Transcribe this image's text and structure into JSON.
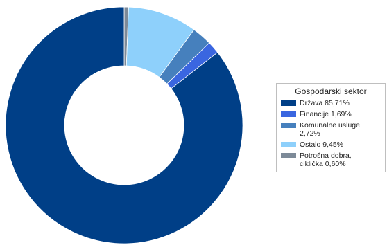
{
  "chart_data": {
    "type": "pie",
    "variant": "donut",
    "title": "",
    "legend": {
      "title": "Gospodarski sektor",
      "placement": "right"
    },
    "slices": [
      {
        "name": "Država",
        "label": "Država 85,71%",
        "value": 85.71,
        "color": "#003f87"
      },
      {
        "name": "Financije",
        "label": "Financije 1,69%",
        "value": 1.69,
        "color": "#3a66e0"
      },
      {
        "name": "Komunalne usluge",
        "label": "Komunalne usluge 2,72%",
        "value": 2.72,
        "color": "#4680bd"
      },
      {
        "name": "Ostalo",
        "label": "Ostalo 9,45%",
        "value": 9.45,
        "color": "#8ed0fb"
      },
      {
        "name": "Potrošna dobra, ciklička",
        "label": "Potrošna dobra,\nciklička 0,60%",
        "value": 0.6,
        "color": "#7d8a98"
      }
    ]
  }
}
